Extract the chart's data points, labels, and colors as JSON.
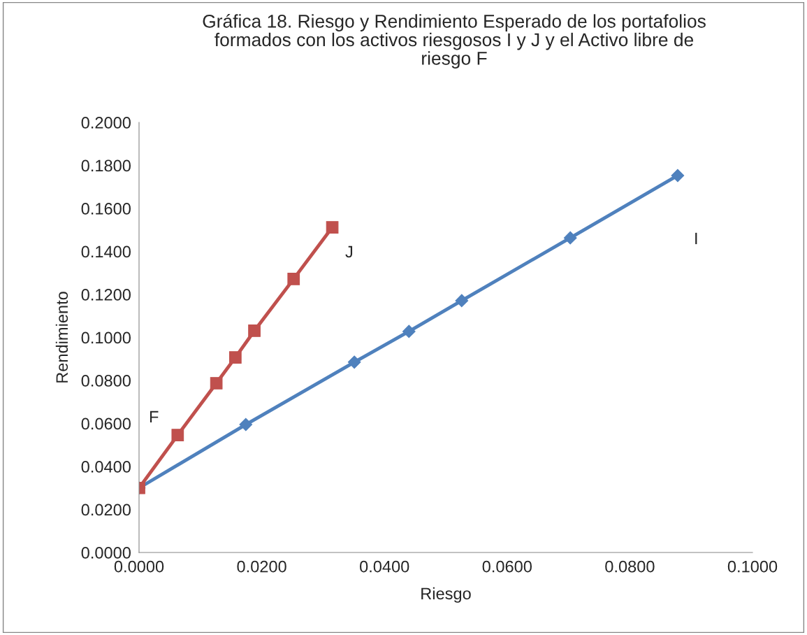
{
  "chart_data": {
    "type": "line",
    "title": "Gráfica 18. Riesgo y Rendimiento Esperado de los portafolios\nformados con los activos riesgosos I y J y el Activo libre de\nriesgo F",
    "xlabel": "Riesgo",
    "ylabel": "Rendimiento",
    "series": [
      {
        "color": "#4f81bd",
        "marker": "diamond",
        "x": [
          0.0,
          0.0174,
          0.0351,
          0.044,
          0.0526,
          0.0703,
          0.0878
        ],
        "values": [
          0.03,
          0.0595,
          0.0885,
          0.1028,
          0.1171,
          0.1463,
          0.1753
        ]
      },
      {
        "color": "#c0504d",
        "marker": "square",
        "x": [
          0.0,
          0.0063,
          0.0126,
          0.0157,
          0.0188,
          0.0252,
          0.0315
        ],
        "values": [
          0.03,
          0.0546,
          0.0787,
          0.0907,
          0.1031,
          0.1272,
          0.1512
        ]
      }
    ],
    "annotations": [
      "F",
      "J",
      "I"
    ],
    "xlim": [
      0.0,
      0.1
    ],
    "xticks": [
      {
        "value": 0,
        "label": "0.0000"
      },
      {
        "value": 0.02,
        "label": "0.0200"
      },
      {
        "value": 0.04,
        "label": "0.0400"
      },
      {
        "value": 0.06,
        "label": "0.0600"
      },
      {
        "value": 0.08,
        "label": "0.0800"
      },
      {
        "value": 0.1,
        "label": "0.1000"
      }
    ],
    "ylim": [
      0.0,
      0.2
    ],
    "yticks": [
      {
        "value": 0,
        "label": "0.0000"
      },
      {
        "value": 0.02,
        "label": "0.0200"
      },
      {
        "value": 0.04,
        "label": "0.0400"
      },
      {
        "value": 0.06,
        "label": "0.0600"
      },
      {
        "value": 0.08,
        "label": "0.0800"
      },
      {
        "value": 0.1,
        "label": "0.1000"
      },
      {
        "value": 0.12,
        "label": "0.1200"
      },
      {
        "value": 0.14,
        "label": "0.1400"
      },
      {
        "value": 0.16,
        "label": "0.1600"
      },
      {
        "value": 0.18,
        "label": "0.1800"
      },
      {
        "value": 0.2,
        "label": "0.2000"
      }
    ],
    "grid": false,
    "legend": false,
    "line_style": "solid"
  }
}
